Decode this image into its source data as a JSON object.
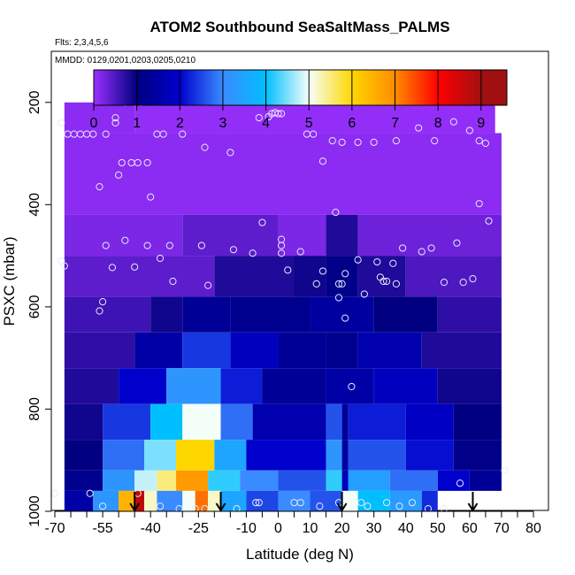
{
  "chart_data": {
    "type": "heatmap",
    "title": "ATOM2 Southbound SeaSaltMass_PALMS",
    "flights_label": "Flts: 2,3,4,5,6",
    "mmdd_label": "MMDD: 0129,0201,0203,0205,0210",
    "xlabel": "Latitude (deg N)",
    "ylabel": "PSXC (mbar)",
    "xlim": [
      -70,
      80
    ],
    "ylim": [
      1000,
      100
    ],
    "x_ticks": [
      "-70",
      "-55",
      "-40",
      "-25",
      "-10",
      "0",
      "10",
      "20",
      "30",
      "40",
      "50",
      "60",
      "70",
      "80"
    ],
    "x_tick_values": [
      -70,
      -55,
      -40,
      -25,
      -10,
      0,
      10,
      20,
      30,
      40,
      50,
      60,
      70,
      80
    ],
    "y_ticks": [
      "200",
      "400",
      "600",
      "800",
      "1000"
    ],
    "y_tick_values": [
      200,
      400,
      600,
      800,
      1000
    ],
    "colorbar": {
      "range": [
        0,
        9.6
      ],
      "ticks": [
        "0",
        "1",
        "2",
        "3",
        "4",
        "5",
        "6",
        "7",
        "8",
        "9"
      ],
      "colors": [
        "#9b30ff",
        "#000080",
        "#0000cd",
        "#3a8bff",
        "#00bfff",
        "#f5fffa",
        "#ffd700",
        "#ff8c00",
        "#ff0000",
        "#a01010"
      ]
    },
    "profile_rows": [
      {
        "p": [
          200,
          260
        ],
        "segs": [
          [
            -67,
            -45,
            0.1
          ],
          [
            -45,
            68,
            0.05
          ]
        ]
      },
      {
        "p": [
          260,
          420
        ],
        "segs": [
          [
            -67,
            70,
            0.1
          ]
        ]
      },
      {
        "p": [
          420,
          500
        ],
        "segs": [
          [
            -67,
            -30,
            0.2
          ],
          [
            -30,
            0,
            0.4
          ],
          [
            0,
            15,
            0.2
          ],
          [
            15,
            25,
            0.8
          ],
          [
            25,
            70,
            0.3
          ]
        ]
      },
      {
        "p": [
          500,
          580
        ],
        "segs": [
          [
            -67,
            -20,
            0.4
          ],
          [
            -20,
            5,
            0.8
          ],
          [
            5,
            15,
            0.9
          ],
          [
            15,
            25,
            1.1
          ],
          [
            25,
            40,
            0.8
          ],
          [
            40,
            70,
            0.5
          ]
        ]
      },
      {
        "p": [
          580,
          650
        ],
        "segs": [
          [
            -67,
            -40,
            0.6
          ],
          [
            -40,
            -30,
            0.9
          ],
          [
            -30,
            -15,
            1.3
          ],
          [
            -15,
            10,
            1.2
          ],
          [
            10,
            30,
            1.4
          ],
          [
            30,
            50,
            1.0
          ],
          [
            50,
            70,
            0.7
          ]
        ]
      },
      {
        "p": [
          650,
          720
        ],
        "segs": [
          [
            -67,
            -45,
            0.7
          ],
          [
            -45,
            -30,
            1.5
          ],
          [
            -30,
            -15,
            2.4
          ],
          [
            -15,
            0,
            1.8
          ],
          [
            0,
            15,
            1.3
          ],
          [
            15,
            25,
            1.2
          ],
          [
            25,
            45,
            1.6
          ],
          [
            45,
            70,
            0.8
          ]
        ]
      },
      {
        "p": [
          720,
          790
        ],
        "segs": [
          [
            -67,
            -50,
            0.8
          ],
          [
            -50,
            -35,
            2.0
          ],
          [
            -35,
            -18,
            3.2
          ],
          [
            -18,
            -5,
            2.2
          ],
          [
            -5,
            15,
            1.3
          ],
          [
            15,
            30,
            1.5
          ],
          [
            30,
            50,
            1.8
          ],
          [
            50,
            70,
            0.9
          ]
        ]
      },
      {
        "p": [
          790,
          860
        ],
        "segs": [
          [
            -67,
            -55,
            0.9
          ],
          [
            -55,
            -40,
            2.4
          ],
          [
            -40,
            -30,
            4.0
          ],
          [
            -30,
            -18,
            5.0
          ],
          [
            -18,
            -8,
            2.8
          ],
          [
            -8,
            15,
            1.6
          ],
          [
            15,
            20,
            2.6
          ],
          [
            20,
            22,
            1.3
          ],
          [
            22,
            40,
            2.2
          ],
          [
            40,
            55,
            1.9
          ],
          [
            55,
            70,
            1.0
          ]
        ]
      },
      {
        "p": [
          860,
          920
        ],
        "segs": [
          [
            -67,
            -55,
            1.0
          ],
          [
            -55,
            -42,
            2.8
          ],
          [
            -42,
            -32,
            4.5
          ],
          [
            -32,
            -20,
            6.0
          ],
          [
            -20,
            -10,
            3.5
          ],
          [
            -10,
            15,
            2.0
          ],
          [
            15,
            20,
            3.2
          ],
          [
            20,
            22,
            1.4
          ],
          [
            22,
            40,
            2.6
          ],
          [
            40,
            55,
            2.1
          ],
          [
            55,
            70,
            1.1
          ]
        ]
      },
      {
        "p": [
          920,
          960
        ],
        "segs": [
          [
            -67,
            -55,
            1.2
          ],
          [
            -55,
            -45,
            3.2
          ],
          [
            -45,
            -38,
            4.8
          ],
          [
            -38,
            -32,
            5.5
          ],
          [
            -32,
            -22,
            6.8
          ],
          [
            -22,
            -12,
            4.2
          ],
          [
            -12,
            0,
            3.0
          ],
          [
            0,
            15,
            2.6
          ],
          [
            15,
            20,
            4.2
          ],
          [
            20,
            22,
            1.8
          ],
          [
            22,
            35,
            3.4
          ],
          [
            35,
            50,
            2.8
          ],
          [
            50,
            60,
            2.0
          ],
          [
            60,
            70,
            1.3
          ]
        ]
      },
      {
        "p": [
          960,
          1000
        ],
        "segs": [
          [
            -67,
            -58,
            1.5
          ],
          [
            -58,
            -50,
            3.2
          ],
          [
            -50,
            -45,
            6.5
          ],
          [
            -45,
            -42,
            8.7
          ],
          [
            -42,
            -38,
            5.2
          ],
          [
            -38,
            -30,
            3.0
          ],
          [
            -30,
            -26,
            5.0
          ],
          [
            -26,
            -22,
            7.2
          ],
          [
            -22,
            -18,
            5.2
          ],
          [
            -18,
            -10,
            3.5
          ],
          [
            -10,
            0,
            2.5
          ],
          [
            0,
            10,
            3.0
          ],
          [
            10,
            20,
            2.6
          ],
          [
            20,
            25,
            5.0
          ],
          [
            25,
            35,
            4.0
          ],
          [
            35,
            45,
            3.3
          ],
          [
            45,
            50,
            2.3
          ]
        ]
      }
    ],
    "sample_points": [
      [
        -68,
        240
      ],
      [
        -66,
        262
      ],
      [
        -64,
        262
      ],
      [
        -62,
        262
      ],
      [
        -60,
        262
      ],
      [
        -58,
        262
      ],
      [
        -54,
        262
      ],
      [
        -51,
        230
      ],
      [
        -51,
        240
      ],
      [
        -48,
        200
      ],
      [
        -45,
        200
      ],
      [
        -43,
        200
      ],
      [
        -49,
        318
      ],
      [
        -46,
        318
      ],
      [
        -44,
        318
      ],
      [
        -41,
        318
      ],
      [
        -38,
        262
      ],
      [
        -36,
        262
      ],
      [
        -30,
        262
      ],
      [
        -23,
        288
      ],
      [
        -15,
        298
      ],
      [
        -6,
        230
      ],
      [
        -3,
        228
      ],
      [
        -2,
        222
      ],
      [
        -1,
        220
      ],
      [
        0,
        222
      ],
      [
        1,
        222
      ],
      [
        9,
        262
      ],
      [
        11,
        262
      ],
      [
        14,
        315
      ],
      [
        17,
        275
      ],
      [
        20,
        278
      ],
      [
        25,
        278
      ],
      [
        30,
        278
      ],
      [
        37,
        275
      ],
      [
        44,
        250
      ],
      [
        49,
        275
      ],
      [
        55,
        238
      ],
      [
        60,
        255
      ],
      [
        63,
        275
      ],
      [
        65,
        280
      ],
      [
        68,
        200
      ],
      [
        70,
        200
      ],
      [
        -68,
        510
      ],
      [
        -67,
        520
      ],
      [
        -56,
        365
      ],
      [
        -50,
        342
      ],
      [
        -40,
        385
      ],
      [
        -54,
        480
      ],
      [
        -52,
        523
      ],
      [
        -48,
        470
      ],
      [
        -45,
        522
      ],
      [
        -41,
        480
      ],
      [
        -37,
        505
      ],
      [
        -34,
        480
      ],
      [
        -33,
        550
      ],
      [
        -24,
        480
      ],
      [
        -22,
        558
      ],
      [
        -14,
        488
      ],
      [
        -8,
        495
      ],
      [
        -5,
        435
      ],
      [
        1,
        468
      ],
      [
        1,
        480
      ],
      [
        1,
        495
      ],
      [
        3,
        528
      ],
      [
        7,
        492
      ],
      [
        12,
        555
      ],
      [
        14,
        530
      ],
      [
        19,
        582
      ],
      [
        21,
        535
      ],
      [
        25,
        508
      ],
      [
        27,
        575
      ],
      [
        31,
        512
      ],
      [
        32,
        542
      ],
      [
        33,
        550
      ],
      [
        34,
        550
      ],
      [
        36,
        515
      ],
      [
        37,
        555
      ],
      [
        39,
        485
      ],
      [
        45,
        492
      ],
      [
        48,
        485
      ],
      [
        52,
        552
      ],
      [
        56,
        475
      ],
      [
        58,
        552
      ],
      [
        61,
        545
      ],
      [
        63,
        398
      ],
      [
        66,
        432
      ],
      [
        18,
        415
      ],
      [
        19,
        555
      ],
      [
        20,
        555
      ],
      [
        21,
        622
      ],
      [
        23,
        756
      ],
      [
        -56,
        608
      ],
      [
        -55,
        590
      ],
      [
        -70,
        965
      ],
      [
        -59,
        965
      ],
      [
        -55,
        990
      ],
      [
        -44,
        965
      ],
      [
        -37,
        990
      ],
      [
        -31,
        995
      ],
      [
        -26,
        995
      ],
      [
        -23,
        995
      ],
      [
        -13,
        995
      ],
      [
        -7,
        983
      ],
      [
        -6,
        983
      ],
      [
        5,
        983
      ],
      [
        7,
        983
      ],
      [
        13,
        990
      ],
      [
        19,
        983
      ],
      [
        26,
        983
      ],
      [
        28,
        990
      ],
      [
        34,
        983
      ],
      [
        38,
        990
      ],
      [
        42,
        983
      ],
      [
        47,
        995
      ],
      [
        52,
        995
      ],
      [
        57,
        945
      ],
      [
        71,
        920
      ]
    ],
    "flight_arrows": [
      -45,
      -18,
      20,
      61
    ]
  }
}
